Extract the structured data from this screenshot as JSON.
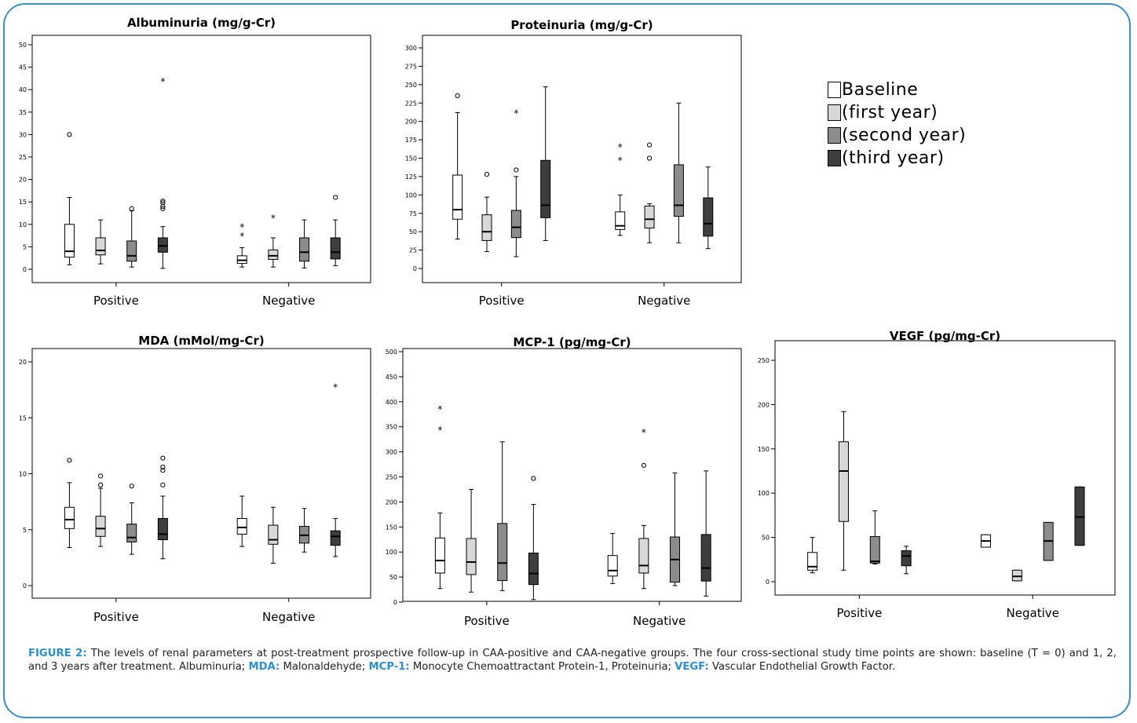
{
  "legend": {
    "items": [
      {
        "label": "Baseline",
        "color": "#ffffff"
      },
      {
        "label": "(first year)",
        "color": "#d8d8d8"
      },
      {
        "label": "(second year)",
        "color": "#8c8c8c"
      },
      {
        "label": "(third year)",
        "color": "#3e3e3e"
      }
    ]
  },
  "caption": {
    "figure_label": "FIGURE 2:",
    "text1": " The levels of renal parameters at post-treatment prospective follow-up in CAA-positive and CAA-negative groups. The four cross-sectional study time points are shown: baseline (T = 0) and 1, 2, and 3 years after treatment. Albuminuria; ",
    "mda_key": "MDA:",
    "text2": " Malonaldehyde; ",
    "mcp_key": "MCP-1:",
    "text3": " Monocyte Chemoattractant Protein-1, Proteinuria; ",
    "vegf_key": "VEGF:",
    "text4": " Vascular Endothelial Growth Factor."
  },
  "chart_data": [
    {
      "id": "albuminuria",
      "type": "box",
      "title": "Albuminuria (mg/g-Cr)",
      "categories": [
        "Positive",
        "Negative"
      ],
      "ylim": [
        0,
        50
      ],
      "yticks": [
        0,
        5,
        10,
        15,
        20,
        25,
        30,
        35,
        40,
        45,
        50
      ],
      "series_colors": [
        "#ffffff",
        "#d8d8d8",
        "#8c8c8c",
        "#3e3e3e"
      ],
      "boxes": [
        {
          "group": 0,
          "series": 0,
          "min": 1,
          "q1": 2.7,
          "median": 4,
          "q3": 10,
          "max": 16,
          "outliers": [
            30
          ],
          "extremes": []
        },
        {
          "group": 0,
          "series": 1,
          "min": 1.2,
          "q1": 3.2,
          "median": 4.2,
          "q3": 7,
          "max": 11,
          "outliers": [],
          "extremes": []
        },
        {
          "group": 0,
          "series": 2,
          "min": 0.5,
          "q1": 1.8,
          "median": 3,
          "q3": 6.3,
          "max": 13,
          "outliers": [
            13.5
          ],
          "extremes": []
        },
        {
          "group": 0,
          "series": 3,
          "min": 0.2,
          "q1": 3.8,
          "median": 5.2,
          "q3": 7,
          "max": 9.5,
          "outliers": [
            13.5,
            14,
            14.8,
            15.2
          ],
          "extremes": [
            42
          ]
        },
        {
          "group": 1,
          "series": 0,
          "min": 0.5,
          "q1": 1.3,
          "median": 2,
          "q3": 3,
          "max": 4.8,
          "outliers": [],
          "extremes": [
            7.5,
            9.5
          ]
        },
        {
          "group": 1,
          "series": 1,
          "min": 0.5,
          "q1": 2.2,
          "median": 3,
          "q3": 4.3,
          "max": 7,
          "outliers": [],
          "extremes": [
            11.5
          ]
        },
        {
          "group": 1,
          "series": 2,
          "min": 0.3,
          "q1": 1.8,
          "median": 3.8,
          "q3": 7,
          "max": 11,
          "outliers": [],
          "extremes": []
        },
        {
          "group": 1,
          "series": 3,
          "min": 0.8,
          "q1": 2.3,
          "median": 3.8,
          "q3": 7,
          "max": 11,
          "outliers": [
            16
          ],
          "extremes": []
        }
      ]
    },
    {
      "id": "proteinuria",
      "type": "box",
      "title": "Proteinuria (mg/g-Cr)",
      "categories": [
        "Positive",
        "Negative"
      ],
      "ylim": [
        0,
        300
      ],
      "yticks": [
        0,
        25,
        50,
        75,
        100,
        125,
        150,
        175,
        200,
        225,
        250,
        275,
        300
      ],
      "series_colors": [
        "#ffffff",
        "#d8d8d8",
        "#8c8c8c",
        "#3e3e3e"
      ],
      "boxes": [
        {
          "group": 0,
          "series": 0,
          "min": 40,
          "q1": 67,
          "median": 80,
          "q3": 127,
          "max": 212,
          "outliers": [
            235
          ],
          "extremes": []
        },
        {
          "group": 0,
          "series": 1,
          "min": 23,
          "q1": 38,
          "median": 50,
          "q3": 73,
          "max": 97,
          "outliers": [
            128
          ],
          "extremes": []
        },
        {
          "group": 0,
          "series": 2,
          "min": 16,
          "q1": 42,
          "median": 56,
          "q3": 79,
          "max": 125,
          "outliers": [
            134
          ],
          "extremes": [
            212
          ]
        },
        {
          "group": 0,
          "series": 3,
          "min": 38,
          "q1": 69,
          "median": 86,
          "q3": 147,
          "max": 247,
          "outliers": [],
          "extremes": []
        },
        {
          "group": 1,
          "series": 0,
          "min": 45,
          "q1": 53,
          "median": 58,
          "q3": 77,
          "max": 100,
          "outliers": [],
          "extremes": [
            148,
            166
          ]
        },
        {
          "group": 1,
          "series": 1,
          "min": 35,
          "q1": 55,
          "median": 67,
          "q3": 85,
          "max": 88,
          "outliers": [
            150,
            168
          ],
          "extremes": []
        },
        {
          "group": 1,
          "series": 2,
          "min": 35,
          "q1": 71,
          "median": 86,
          "q3": 141,
          "max": 225,
          "outliers": [],
          "extremes": []
        },
        {
          "group": 1,
          "series": 3,
          "min": 27,
          "q1": 44,
          "median": 61,
          "q3": 96,
          "max": 138,
          "outliers": [],
          "extremes": []
        }
      ]
    },
    {
      "id": "mda",
      "type": "box",
      "title": "MDA (mMol/mg-Cr)",
      "categories": [
        "Positive",
        "Negative"
      ],
      "ylim": [
        0,
        20
      ],
      "yticks": [
        0,
        5,
        10,
        15,
        20
      ],
      "series_colors": [
        "#ffffff",
        "#d8d8d8",
        "#8c8c8c",
        "#3e3e3e"
      ],
      "boxes": [
        {
          "group": 0,
          "series": 0,
          "min": 3.4,
          "q1": 5.1,
          "median": 5.9,
          "q3": 7,
          "max": 9.2,
          "outliers": [
            11.2
          ],
          "extremes": []
        },
        {
          "group": 0,
          "series": 1,
          "min": 3.5,
          "q1": 4.4,
          "median": 5.1,
          "q3": 6.2,
          "max": 8.7,
          "outliers": [
            9,
            9.8
          ],
          "extremes": []
        },
        {
          "group": 0,
          "series": 2,
          "min": 2.8,
          "q1": 3.9,
          "median": 4.3,
          "q3": 5.5,
          "max": 7.4,
          "outliers": [
            8.9
          ],
          "extremes": []
        },
        {
          "group": 0,
          "series": 3,
          "min": 2.4,
          "q1": 4.1,
          "median": 4.6,
          "q3": 6,
          "max": 8,
          "outliers": [
            9,
            10.3,
            10.6,
            11.4
          ],
          "extremes": []
        },
        {
          "group": 1,
          "series": 0,
          "min": 3.5,
          "q1": 4.6,
          "median": 5.2,
          "q3": 6,
          "max": 8,
          "outliers": [],
          "extremes": []
        },
        {
          "group": 1,
          "series": 1,
          "min": 2,
          "q1": 3.7,
          "median": 4.1,
          "q3": 5.4,
          "max": 7,
          "outliers": [],
          "extremes": []
        },
        {
          "group": 1,
          "series": 2,
          "min": 3,
          "q1": 3.8,
          "median": 4.5,
          "q3": 5.3,
          "max": 6.9,
          "outliers": [],
          "extremes": []
        },
        {
          "group": 1,
          "series": 3,
          "min": 2.6,
          "q1": 3.6,
          "median": 4.4,
          "q3": 4.9,
          "max": 6,
          "outliers": [],
          "extremes": [
            17.8
          ]
        }
      ]
    },
    {
      "id": "mcp1",
      "type": "box",
      "title": "MCP-1 (pg/mg-Cr)",
      "categories": [
        "Positive",
        "Negative"
      ],
      "ylim": [
        0,
        500
      ],
      "yticks": [
        0,
        50,
        100,
        150,
        200,
        250,
        300,
        350,
        400,
        450,
        500
      ],
      "series_colors": [
        "#ffffff",
        "#d8d8d8",
        "#8c8c8c",
        "#3e3e3e"
      ],
      "boxes": [
        {
          "group": 0,
          "series": 0,
          "min": 27,
          "q1": 58,
          "median": 83,
          "q3": 128,
          "max": 178,
          "outliers": [],
          "extremes": [
            345,
            386
          ]
        },
        {
          "group": 0,
          "series": 1,
          "min": 20,
          "q1": 55,
          "median": 80,
          "q3": 127,
          "max": 225,
          "outliers": [],
          "extremes": []
        },
        {
          "group": 0,
          "series": 2,
          "min": 23,
          "q1": 43,
          "median": 78,
          "q3": 157,
          "max": 320,
          "outliers": [],
          "extremes": []
        },
        {
          "group": 0,
          "series": 3,
          "min": 5,
          "q1": 35,
          "median": 57,
          "q3": 98,
          "max": 195,
          "outliers": [
            247
          ],
          "extremes": []
        },
        {
          "group": 1,
          "series": 0,
          "min": 37,
          "q1": 52,
          "median": 63,
          "q3": 93,
          "max": 137,
          "outliers": [],
          "extremes": []
        },
        {
          "group": 1,
          "series": 1,
          "min": 27,
          "q1": 58,
          "median": 73,
          "q3": 127,
          "max": 153,
          "outliers": [
            273
          ],
          "extremes": [
            340
          ]
        },
        {
          "group": 1,
          "series": 2,
          "min": 33,
          "q1": 40,
          "median": 85,
          "q3": 130,
          "max": 258,
          "outliers": [],
          "extremes": []
        },
        {
          "group": 1,
          "series": 3,
          "min": 12,
          "q1": 42,
          "median": 68,
          "q3": 135,
          "max": 262,
          "outliers": [],
          "extremes": []
        }
      ]
    },
    {
      "id": "vegf",
      "type": "box",
      "title": "VEGF (pg/mg-Cr)",
      "categories": [
        "Positive",
        "Negative"
      ],
      "ylim": [
        0,
        250
      ],
      "yticks": [
        0,
        50,
        100,
        150,
        200,
        250
      ],
      "series_colors": [
        "#ffffff",
        "#d8d8d8",
        "#8c8c8c",
        "#3e3e3e"
      ],
      "boxes": [
        {
          "group": 0,
          "series": 0,
          "min": 10,
          "q1": 13,
          "median": 17,
          "q3": 33,
          "max": 50,
          "outliers": [],
          "extremes": []
        },
        {
          "group": 0,
          "series": 1,
          "min": 13,
          "q1": 68,
          "median": 125,
          "q3": 158,
          "max": 192,
          "outliers": [],
          "extremes": []
        },
        {
          "group": 0,
          "series": 2,
          "min": 20,
          "q1": 21,
          "median": 23,
          "q3": 51,
          "max": 80,
          "outliers": [],
          "extremes": []
        },
        {
          "group": 0,
          "series": 3,
          "min": 9,
          "q1": 18,
          "median": 29,
          "q3": 35,
          "max": 40,
          "outliers": [],
          "extremes": []
        },
        {
          "group": 1,
          "series": 0,
          "min": 39,
          "q1": 39,
          "median": 46,
          "q3": 53,
          "max": 53,
          "outliers": [],
          "extremes": []
        },
        {
          "group": 1,
          "series": 1,
          "min": 1,
          "q1": 1,
          "median": 6,
          "q3": 13,
          "max": 13,
          "outliers": [],
          "extremes": []
        },
        {
          "group": 1,
          "series": 2,
          "min": 24,
          "q1": 24,
          "median": 46,
          "q3": 67,
          "max": 67,
          "outliers": [],
          "extremes": []
        },
        {
          "group": 1,
          "series": 3,
          "min": 41,
          "q1": 41,
          "median": 73,
          "q3": 107,
          "max": 107,
          "outliers": [],
          "extremes": []
        }
      ]
    }
  ]
}
